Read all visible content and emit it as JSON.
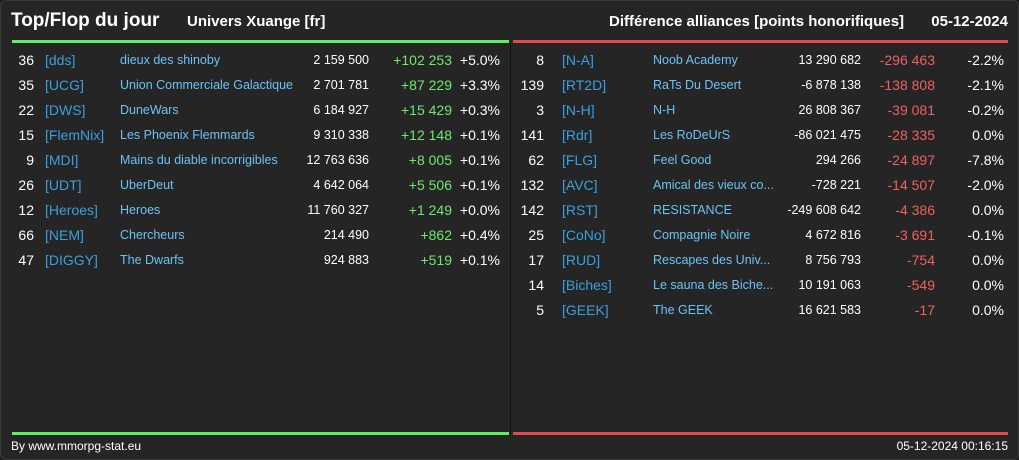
{
  "header": {
    "title": "Top/Flop du jour",
    "server": "Univers Xuange [fr]",
    "subtitle": "Différence alliances [points honorifiques]",
    "date": "05-12-2024"
  },
  "colors": {
    "up": "#6ee86e",
    "down": "#f06060",
    "tag": "#3aa0e0",
    "name": "#6cc2f4"
  },
  "top": [
    {
      "rank": "36",
      "tag": "[dds]",
      "name": "dieux des shinoby",
      "points": "2 159 500",
      "diff": "+102 253",
      "pct": "+5.0%"
    },
    {
      "rank": "35",
      "tag": "[UCG]",
      "name": "Union Commerciale Galactique",
      "points": "2 701 781",
      "diff": "+87 229",
      "pct": "+3.3%"
    },
    {
      "rank": "22",
      "tag": "[DWS]",
      "name": "DuneWars",
      "points": "6 184 927",
      "diff": "+15 429",
      "pct": "+0.3%"
    },
    {
      "rank": "15",
      "tag": "[FlemNix]",
      "name": "Les Phoenix Flemmards",
      "points": "9 310 338",
      "diff": "+12 148",
      "pct": "+0.1%"
    },
    {
      "rank": "9",
      "tag": "[MDI]",
      "name": "Mains du diable incorrigibles",
      "points": "12 763 636",
      "diff": "+8 005",
      "pct": "+0.1%"
    },
    {
      "rank": "26",
      "tag": "[UDT]",
      "name": "UberDeut",
      "points": "4 642 064",
      "diff": "+5 506",
      "pct": "+0.1%"
    },
    {
      "rank": "12",
      "tag": "[Heroes]",
      "name": "Heroes",
      "points": "11 760 327",
      "diff": "+1 249",
      "pct": "+0.0%"
    },
    {
      "rank": "66",
      "tag": "[NEM]",
      "name": "Chercheurs",
      "points": "214 490",
      "diff": "+862",
      "pct": "+0.4%"
    },
    {
      "rank": "47",
      "tag": "[DIGGY]",
      "name": "The Dwarfs",
      "points": "924 883",
      "diff": "+519",
      "pct": "+0.1%"
    }
  ],
  "flop": [
    {
      "rank": "8",
      "tag": "[N-A]",
      "name": "Noob Academy",
      "points": "13 290 682",
      "diff": "-296 463",
      "pct": "-2.2%"
    },
    {
      "rank": "139",
      "tag": "[RT2D]",
      "name": "RaTs Du Desert",
      "points": "-6 878 138",
      "diff": "-138 808",
      "pct": "-2.1%"
    },
    {
      "rank": "3",
      "tag": "[N-H]",
      "name": "N-H",
      "points": "26 808 367",
      "diff": "-39 081",
      "pct": "-0.2%"
    },
    {
      "rank": "141",
      "tag": "[Rdr]",
      "name": "Les RoDeUrS",
      "points": "-86 021 475",
      "diff": "-28 335",
      "pct": "0.0%"
    },
    {
      "rank": "62",
      "tag": "[FLG]",
      "name": "Feel Good",
      "points": "294 266",
      "diff": "-24 897",
      "pct": "-7.8%"
    },
    {
      "rank": "132",
      "tag": "[AVC]",
      "name": "Amical des vieux co...",
      "points": "-728 221",
      "diff": "-14 507",
      "pct": "-2.0%"
    },
    {
      "rank": "142",
      "tag": "[RST]",
      "name": "RESISTANCE",
      "points": "-249 608 642",
      "diff": "-4 386",
      "pct": "0.0%"
    },
    {
      "rank": "25",
      "tag": "[CoNo]",
      "name": "Compagnie Noire",
      "points": "4 672 816",
      "diff": "-3 691",
      "pct": "-0.1%"
    },
    {
      "rank": "17",
      "tag": "[RUD]",
      "name": "Rescapes des Univ...",
      "points": "8 756 793",
      "diff": "-754",
      "pct": "0.0%"
    },
    {
      "rank": "14",
      "tag": "[Biches]",
      "name": "Le sauna des Biche...",
      "points": "10 191 063",
      "diff": "-549",
      "pct": "0.0%"
    },
    {
      "rank": "5",
      "tag": "[GEEK]",
      "name": "The GEEK",
      "points": "16 621 583",
      "diff": "-17",
      "pct": "0.0%"
    }
  ],
  "footer": {
    "source": "By www.mmorpg-stat.eu",
    "timestamp": "05-12-2024 00:16:15"
  }
}
